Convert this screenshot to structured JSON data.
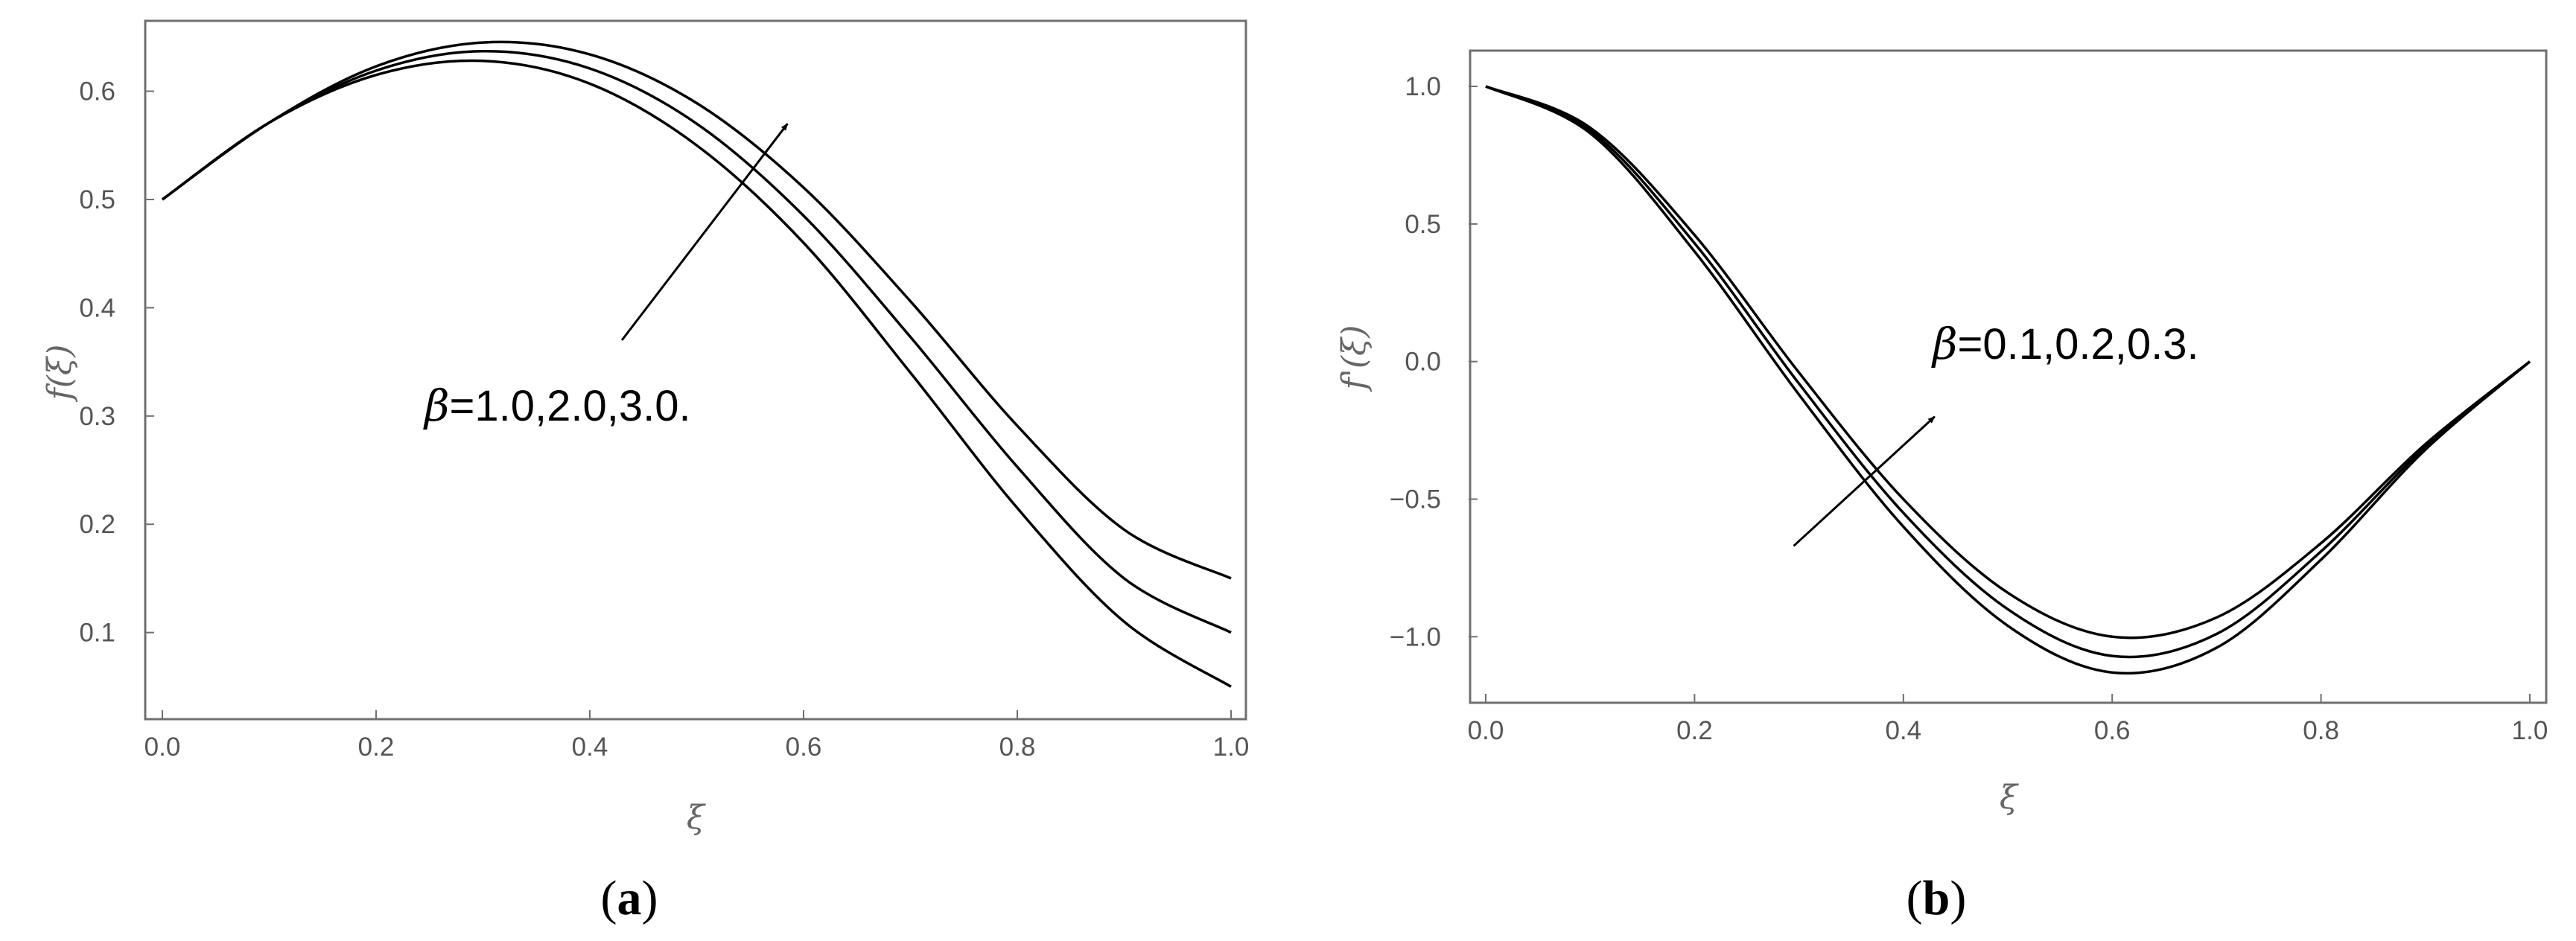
{
  "chart_data": [
    {
      "type": "line",
      "panel_label": "(a)",
      "panel_label_letter": "a",
      "ylabel": "f(ξ)",
      "xlabel": "ξ",
      "xlim": [
        0.0,
        1.0
      ],
      "ylim": [
        0.02,
        0.665
      ],
      "xticks": [
        "0.0",
        "0.2",
        "0.4",
        "0.6",
        "0.8",
        "1.0"
      ],
      "yticks": [
        "0.1",
        "0.2",
        "0.3",
        "0.4",
        "0.5",
        "0.6"
      ],
      "grid": false,
      "annotation": "=1.0,2.0,3.0.",
      "annotation_symbol": "β",
      "arrow": {
        "from": [
          0.43,
          0.37
        ],
        "to": [
          0.585,
          0.57
        ]
      },
      "series": [
        {
          "values": [
            0.5,
            0.571,
            0.615,
            0.628,
            0.607,
            0.55,
            0.46,
            0.34,
            0.215,
            0.11,
            0.05
          ]
        },
        {
          "values": [
            0.5,
            0.571,
            0.619,
            0.637,
            0.621,
            0.57,
            0.485,
            0.373,
            0.253,
            0.15,
            0.1
          ]
        },
        {
          "values": [
            0.5,
            0.571,
            0.623,
            0.645,
            0.634,
            0.589,
            0.511,
            0.406,
            0.291,
            0.195,
            0.15
          ]
        }
      ],
      "x": [
        0.0,
        0.1,
        0.2,
        0.3,
        0.4,
        0.5,
        0.6,
        0.7,
        0.8,
        0.9,
        1.0
      ]
    },
    {
      "type": "line",
      "panel_label": "(b)",
      "panel_label_letter": "b",
      "ylabel": "f'(ξ)",
      "xlabel": "ξ",
      "xlim": [
        0.0,
        1.0
      ],
      "ylim": [
        -1.24,
        1.13
      ],
      "xticks": [
        "0.0",
        "0.2",
        "0.4",
        "0.6",
        "0.8",
        "1.0"
      ],
      "yticks": [
        "1.0",
        "0.5",
        "0.0",
        "−0.5",
        "−1.0"
      ],
      "grid": false,
      "annotation": "=0.1,0.2,0.3.",
      "annotation_symbol": "β",
      "arrow": {
        "from": [
          0.295,
          -0.67
        ],
        "to": [
          0.43,
          -0.2
        ]
      },
      "series": [
        {
          "values": [
            1.0,
            0.83,
            0.4,
            -0.12,
            -0.6,
            -0.96,
            -1.13,
            -1.04,
            -0.72,
            -0.32,
            0.0
          ]
        },
        {
          "values": [
            1.0,
            0.84,
            0.43,
            -0.08,
            -0.55,
            -0.9,
            -1.07,
            -0.99,
            -0.69,
            -0.31,
            0.0
          ]
        },
        {
          "values": [
            1.0,
            0.85,
            0.46,
            -0.04,
            -0.5,
            -0.84,
            -1.0,
            -0.93,
            -0.66,
            -0.3,
            0.0
          ]
        }
      ],
      "x": [
        0.0,
        0.1,
        0.2,
        0.3,
        0.4,
        0.5,
        0.6,
        0.7,
        0.8,
        0.9,
        1.0
      ]
    }
  ]
}
